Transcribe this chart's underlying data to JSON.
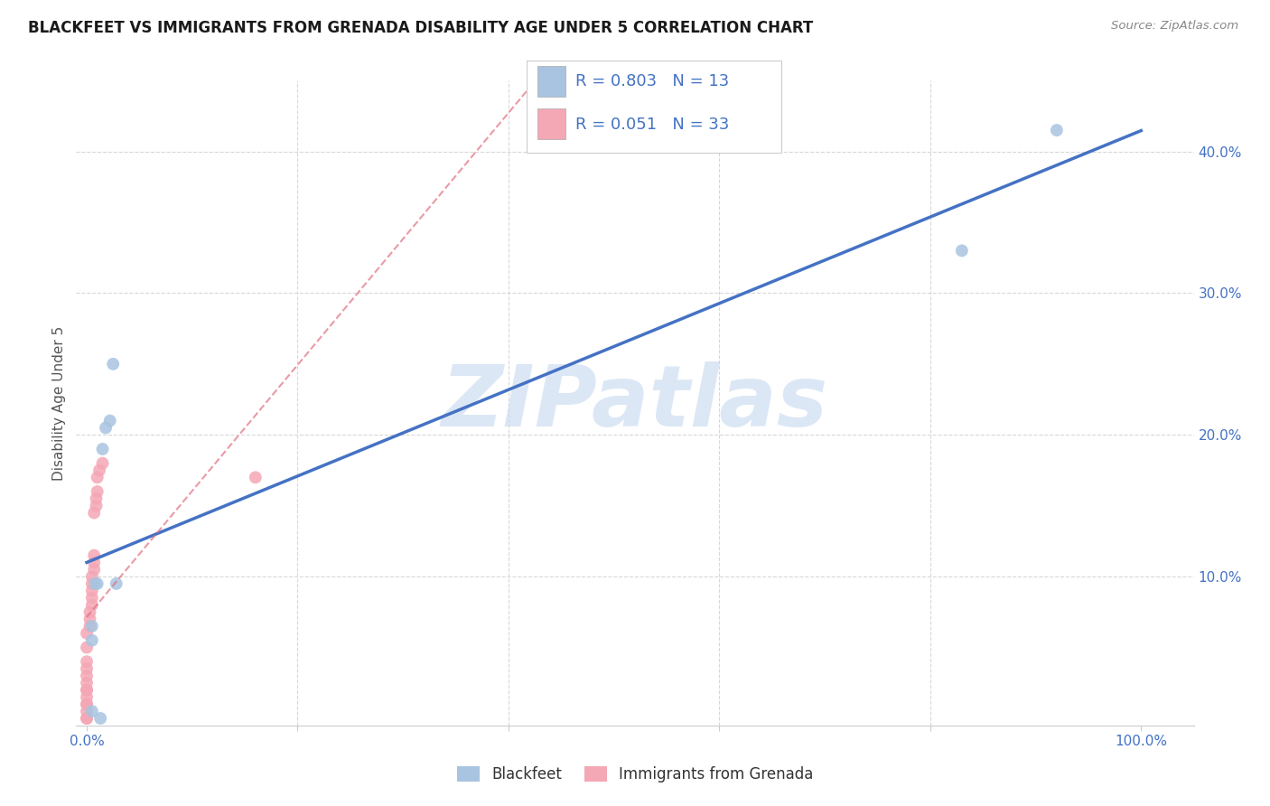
{
  "title": "BLACKFEET VS IMMIGRANTS FROM GRENADA DISABILITY AGE UNDER 5 CORRELATION CHART",
  "source": "Source: ZipAtlas.com",
  "ylabel_label": "Disability Age Under 5",
  "x_ticks": [
    0.0,
    0.2,
    0.4,
    0.6,
    0.8,
    1.0
  ],
  "x_tick_labels": [
    "0.0%",
    "",
    "",
    "",
    "",
    "100.0%"
  ],
  "y_ticks": [
    0.0,
    0.1,
    0.2,
    0.3,
    0.4
  ],
  "y_tick_labels": [
    "",
    "10.0%",
    "20.0%",
    "30.0%",
    "40.0%"
  ],
  "xlim": [
    -0.01,
    1.05
  ],
  "ylim": [
    -0.005,
    0.45
  ],
  "blackfeet_x": [
    0.005,
    0.005,
    0.008,
    0.01,
    0.013,
    0.015,
    0.018,
    0.022,
    0.025,
    0.028,
    0.005,
    0.83,
    0.92
  ],
  "blackfeet_y": [
    0.055,
    0.065,
    0.095,
    0.095,
    0.0,
    0.19,
    0.205,
    0.21,
    0.25,
    0.095,
    0.005,
    0.33,
    0.415
  ],
  "grenada_x": [
    0.0,
    0.0,
    0.0,
    0.0,
    0.0,
    0.0,
    0.0,
    0.0,
    0.0,
    0.0,
    0.0,
    0.0,
    0.0,
    0.0,
    0.003,
    0.003,
    0.003,
    0.005,
    0.005,
    0.005,
    0.005,
    0.005,
    0.007,
    0.007,
    0.007,
    0.007,
    0.009,
    0.009,
    0.01,
    0.01,
    0.012,
    0.015,
    0.16
  ],
  "grenada_y": [
    0.0,
    0.0,
    0.005,
    0.01,
    0.01,
    0.015,
    0.02,
    0.02,
    0.025,
    0.03,
    0.035,
    0.04,
    0.05,
    0.06,
    0.065,
    0.07,
    0.075,
    0.08,
    0.085,
    0.09,
    0.095,
    0.1,
    0.105,
    0.11,
    0.115,
    0.145,
    0.15,
    0.155,
    0.16,
    0.17,
    0.175,
    0.18,
    0.17
  ],
  "blackfeet_color": "#a8c4e0",
  "grenada_color": "#f4a7b5",
  "blackfeet_line_color": "#4472c4",
  "grenada_line_color": "#e07080",
  "blackfeet_R": 0.803,
  "blackfeet_N": 13,
  "grenada_R": 0.051,
  "grenada_N": 33,
  "marker_size": 100,
  "watermark": "ZIPatlas",
  "background_color": "#ffffff",
  "grid_color": "#d8d8d8"
}
